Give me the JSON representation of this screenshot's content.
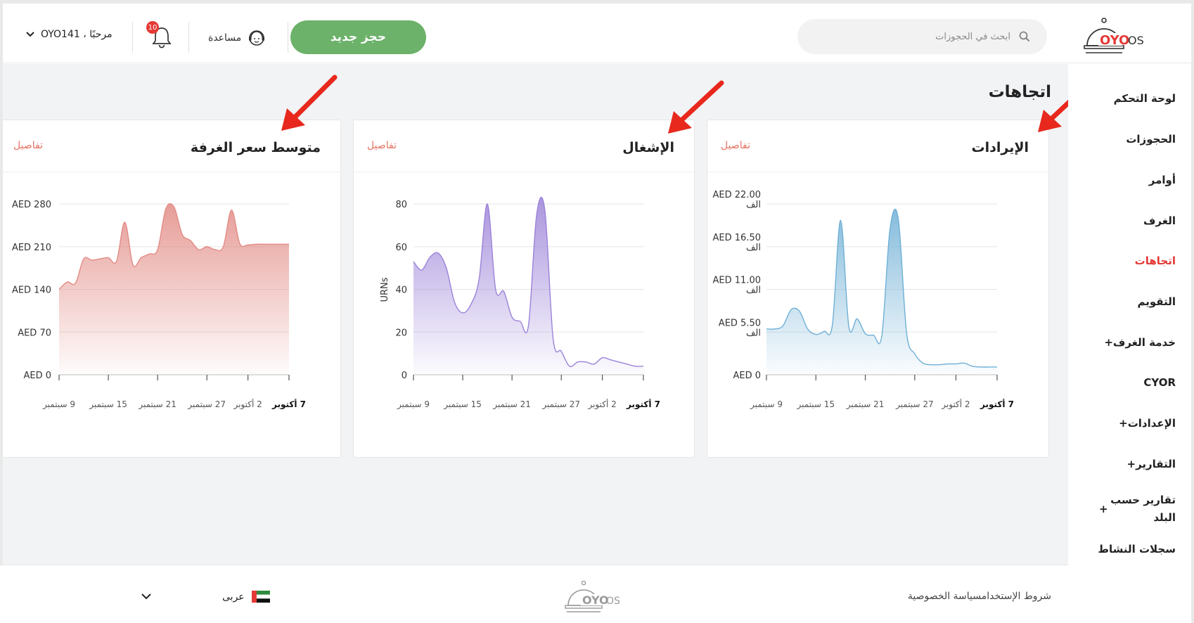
{
  "header": {
    "logo_text": "OYO",
    "logo_suffix": "OS",
    "search_placeholder": "ابحث في الحجوزات",
    "new_booking_label": "حجز جديد",
    "help_label": "مساعدة",
    "notification_count": "10",
    "user_greeting": "مرحبًا ، OYO141"
  },
  "sidebar": {
    "items": [
      {
        "label": "لوحة التحكم"
      },
      {
        "label": "الحجوزات"
      },
      {
        "label": "أوامر"
      },
      {
        "label": "الغرف"
      },
      {
        "label": "اتجاهات",
        "active": true
      },
      {
        "label": "التقويم"
      },
      {
        "label": "خدمة الغرف+"
      },
      {
        "label": "CYOR"
      },
      {
        "label": "الإعدادات+"
      },
      {
        "label": "التقارير+"
      },
      {
        "label": "تقارير حسب البلد",
        "line1": "تقارير حسب",
        "line2": "البلد",
        "suffix": "+"
      },
      {
        "label": "سجلات النشاط"
      }
    ]
  },
  "main": {
    "page_title": "اتجاهات",
    "cards": [
      {
        "title": "الإيرادات",
        "details": "تفاصيل"
      },
      {
        "title": "الإشغال",
        "details": "تفاصيل"
      },
      {
        "title": "متوسط سعر الغرفة",
        "details": "تفاصيل"
      }
    ]
  },
  "footer": {
    "links": "شروط الإستخدامسياسة الخصوصية",
    "language": "عربى"
  },
  "colors": {
    "accent_red": "#e53935",
    "new_button": "#6cb26a",
    "revenue_series": "#6fb0d6",
    "occupancy_series": "#9b82d8",
    "arr_series": "#e28b85"
  },
  "chart_data": [
    {
      "type": "area",
      "title": "الإيرادات",
      "x": [
        "9 سبتمبر",
        "10",
        "11",
        "12",
        "13",
        "14",
        "15 سبتمبر",
        "16",
        "17",
        "18",
        "19",
        "20",
        "21 سبتمبر",
        "22",
        "23",
        "24",
        "25",
        "26",
        "27 سبتمبر",
        "28",
        "29",
        "30",
        "1",
        "2 أكتوبر",
        "3",
        "4",
        "5",
        "6",
        "7 أكتوبر"
      ],
      "values": [
        5.9,
        5.9,
        6.3,
        8.4,
        8.2,
        5.9,
        5.2,
        5.6,
        6.4,
        19.9,
        6.2,
        7.2,
        5.3,
        5.1,
        5.0,
        18.8,
        20.1,
        5.5,
        2.7,
        1.5,
        1.3,
        1.3,
        1.4,
        1.4,
        1.5,
        1.1,
        1.0,
        1.0,
        1.0
      ],
      "ytick_labels": [
        "AED 0",
        "AED 5.50 الف",
        "AED 11.00 الف",
        "AED 16.50 الف",
        "AED 22.00 الف"
      ],
      "yticks": [
        0,
        5.5,
        11,
        16.5,
        22
      ],
      "ylim": [
        0,
        22
      ],
      "xtick_labels": [
        "9 سبتمبر",
        "15 سبتمبر",
        "21 سبتمبر",
        "27 سبتمبر",
        "2 أكتوبر",
        "7 أكتوبر"
      ],
      "grid": true
    },
    {
      "type": "area",
      "title": "الإشغال",
      "ylabel": "URNs",
      "x": [
        "9 سبتمبر",
        "10",
        "11",
        "12",
        "13",
        "14",
        "15 سبتمبر",
        "16",
        "17",
        "18",
        "19",
        "20",
        "21 سبتمبر",
        "22",
        "23",
        "24",
        "25",
        "26",
        "27 سبتمبر",
        "28",
        "29",
        "30",
        "1",
        "2 أكتوبر",
        "3",
        "4",
        "5",
        "6",
        "7 أكتوبر"
      ],
      "values": [
        53,
        49,
        55,
        57,
        50,
        34,
        29,
        33,
        45,
        80,
        40,
        39,
        27,
        25,
        23,
        75,
        77,
        17,
        11,
        4,
        6,
        6,
        5,
        8,
        7,
        6,
        5,
        4,
        4
      ],
      "ytick_labels": [
        "0",
        "20",
        "40",
        "60",
        "80"
      ],
      "yticks": [
        0,
        20,
        40,
        60,
        80
      ],
      "ylim": [
        0,
        80
      ],
      "xtick_labels": [
        "9 سبتمبر",
        "15 سبتمبر",
        "21 سبتمبر",
        "27 سبتمبر",
        "2 أكتوبر",
        "7 أكتوبر"
      ],
      "grid": true
    },
    {
      "type": "area",
      "title": "متوسط سعر الغرفة",
      "x": [
        "9 سبتمبر",
        "10",
        "11",
        "12",
        "13",
        "14",
        "15 سبتمبر",
        "16",
        "17",
        "18",
        "19",
        "20",
        "21 سبتمبر",
        "22",
        "23",
        "24",
        "25",
        "26",
        "27 سبتمبر",
        "28",
        "29",
        "30",
        "1",
        "2 أكتوبر",
        "3",
        "4",
        "5",
        "6",
        "7 أكتوبر"
      ],
      "values": [
        140,
        152,
        150,
        190,
        188,
        190,
        192,
        186,
        250,
        180,
        192,
        198,
        205,
        272,
        275,
        230,
        220,
        205,
        210,
        205,
        210,
        270,
        215,
        213,
        214,
        214,
        214,
        214,
        214
      ],
      "ytick_labels": [
        "AED 0",
        "AED 70",
        "AED 140",
        "AED 210",
        "AED 280"
      ],
      "yticks": [
        0,
        70,
        140,
        210,
        280
      ],
      "ylim": [
        0,
        280
      ],
      "xtick_labels": [
        "9 سبتمبر",
        "15 سبتمبر",
        "21 سبتمبر",
        "27 سبتمبر",
        "2 أكتوبر",
        "7 أكتوبر"
      ],
      "grid": true
    }
  ]
}
